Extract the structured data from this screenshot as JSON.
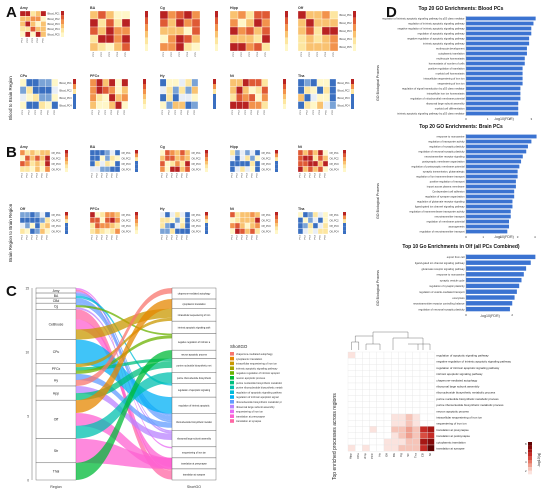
{
  "panels": {
    "a": "A",
    "b": "B",
    "c": "C",
    "d": "D"
  },
  "panel_a": {
    "ylabel": "Blood to Brain Region",
    "row1_titles": [
      "Amy",
      "BA",
      "Cg",
      "Hipp",
      "Off"
    ],
    "row2_titles": [
      "CPu",
      "PFCx",
      "Hy",
      "Nt",
      "Tha"
    ],
    "row1_sub": [
      "Blood_PC1 to Amy_PC1, 2 Correlation",
      "Blood PC1 to Brain_PC1 Correlation",
      "Blood to Cg Brain_PC1 Correlation",
      "Blood to Hipp_PC1 Correlation",
      "Blood to Off_PC1 Correlation"
    ],
    "row_labels": [
      "Blood_PC1",
      "Blood_PC2",
      "Blood_PC3",
      "Blood_PC4",
      "Blood_PC5"
    ]
  },
  "panel_b": {
    "ylabel": "Brain Region to Brain Region",
    "row1_titles": [
      "Amy",
      "BA",
      "Cg",
      "Hipp",
      "Nt"
    ],
    "row2_titles": [
      "Off",
      "PFCx",
      "Hy",
      "Nt",
      "Tha"
    ],
    "row_labels": [
      "Off_PC1",
      "Off_PC2",
      "Off_PC3",
      "Off_PC4"
    ]
  },
  "panel_c": {
    "regions": [
      "Amy",
      "BA",
      "CBd",
      "Cg",
      "CeBlouse",
      "CPu",
      "PFCx",
      "Hy",
      "Hpp",
      "Off",
      "Str",
      "Thal"
    ],
    "y_ticks": [
      "15",
      "10",
      "5",
      "0"
    ],
    "xlabel_left": "Region",
    "xlabel_right": "ShortGO",
    "terms": [
      "chaperone-mediated autophagy",
      "cytoplasmic translation",
      "intracellular sequestering of iron ion",
      "intrinsic apoptotic signaling pathway",
      "negative regulation of intrinsic apoptotic signaling pathway",
      "neuron apoptotic process",
      "purine nucleotide biosynthetic metabolic process",
      "purine ribonucleotide biosynthetic metabolic process",
      "regulation of apoptotic signaling pathway",
      "regulation of intrinsic apoptotic signaling pathway",
      "ribonucleoside biosynthetic metabolic process",
      "ribosomal large subunit assembly",
      "sequestering of iron ion",
      "translation at presynapse",
      "translation at synapse"
    ],
    "legend_title": "ShortGO",
    "legend": [
      "chaperone-mediated autophagy",
      "cytoplasmic translation",
      "intracellular sequestering of iron ion",
      "intrinsic apoptotic signaling pathway",
      "negative regulation of intrinsic apoptotic signaling pathway",
      "neuron apoptotic process",
      "purine nucleotide biosynthetic metabolic process",
      "purine ribonucleotide biosynthetic metabolic process",
      "regulation of apoptotic signaling pathway",
      "regulation of intrinsic apoptotic signaling pathway",
      "ribonucleoside biosynthetic metabolic process",
      "ribosomal large subunit assembly",
      "sequestering of iron ion",
      "translation at presynapse",
      "translation at synapse"
    ],
    "colors": [
      "#f8766d",
      "#e58700",
      "#c99800",
      "#a3a500",
      "#6bb100",
      "#00ba38",
      "#00bf7d",
      "#00c0af",
      "#00bcd8",
      "#00b0f6",
      "#619cff",
      "#b983ff",
      "#e76bf3",
      "#fd61d1",
      "#ff67a4"
    ]
  },
  "panel_d": {
    "chart1": {
      "title": "Top 20 GO Enrichments: Blood PCs",
      "ylabel": "GO Biological Process",
      "xlabel": "-log10(FDR)",
      "x_ticks": [
        "0",
        "1",
        "2",
        "3"
      ],
      "terms": [
        "regulation of intrinsic apoptotic signaling pathway by p53 class mediator",
        "regulation of intrinsic apoptotic signaling pathway",
        "negative regulation of intrinsic apoptotic signaling pathway",
        "regulation of apoptotic signaling pathway",
        "negative regulation of apoptotic signaling pathway",
        "intrinsic apoptotic signaling pathway",
        "erythrocyte development",
        "cytoplasmic translation",
        "erythrocyte homeostasis",
        "homeostasis of number of cells",
        "positive regulation of translation",
        "myeloid cell homeostasis",
        "intracellular sequestering of iron ion",
        "sequestering of iron ion",
        "regulation of signal transduction by p53 class mediator",
        "intracellular iron ion homeostasis",
        "regulation of mitochondrial membrane potential",
        "ribosomal large subunit assembly",
        "myeloid cell differentiation",
        "intrinsic apoptotic signaling pathway by p53 class mediator"
      ],
      "values": [
        3.2,
        3.1,
        3.0,
        3.0,
        2.9,
        2.9,
        2.8,
        2.8,
        2.7,
        2.7,
        2.6,
        2.6,
        2.6,
        2.6,
        2.5,
        2.5,
        2.5,
        2.4,
        2.4,
        2.4
      ]
    },
    "chart2": {
      "title": "Top 20 GO Enrichments: Brain PCs",
      "ylabel": "GO Biological Process",
      "xlabel": "-log10(FDR)",
      "x_ticks": [
        "0",
        "1",
        "2",
        "3",
        "4"
      ],
      "terms": [
        "response to monoamine",
        "regulation of transporter activity",
        "regulation of synaptic plasticity",
        "regulation of neuronal synaptic plasticity",
        "neurotransmitter receptor signaling",
        "postsynaptic membrane organization",
        "regulation of postsynaptic membrane potential",
        "synaptic transmission, glutamatergic",
        "regulation of ion transmembrane transport",
        "positive regulation of transport",
        "import across plasma membrane",
        "Ca-dependent cell adhesion",
        "regulation of synapse organization",
        "regulation of glutamate receptor signaling",
        "ligand-gated ion channel signaling pathway",
        "regulation of transmembrane transporter activity",
        "neurotransmitter transport",
        "regulation of membrane potential",
        "axonogenesis",
        "regulation of neurotransmitter transport"
      ],
      "values": [
        4.1,
        3.8,
        3.6,
        3.5,
        3.3,
        3.2,
        3.1,
        3.0,
        3.0,
        2.9,
        2.9,
        2.8,
        2.8,
        2.7,
        2.7,
        2.6,
        2.6,
        2.5,
        2.5,
        2.4
      ]
    },
    "chart3": {
      "title": "Top 10 Go Enrichments in Olf (all PCs Combined)",
      "ylabel": "GO Biological Process",
      "xlabel": "-log10(FDR)",
      "x_ticks": [
        "0",
        "2"
      ],
      "terms": [
        "export from cell",
        "ligand-gated ion channel signaling pathway",
        "glutamate receptor signaling pathway",
        "response to monoamine",
        "synaptic vesicle cycle",
        "regulation of synaptic plasticity",
        "regulation of vesicle-mediated transport",
        "exocytosis",
        "neurotransmitter receptor controlling balance",
        "regulation of neuronal synaptic plasticity"
      ],
      "values": [
        3.0,
        2.8,
        2.6,
        2.5,
        2.4,
        2.3,
        2.2,
        2.1,
        2.0,
        1.9
      ]
    },
    "heatmap": {
      "ylabel": "Top enriched processes across regions",
      "colorbar_label": "-log10(q)",
      "colorbar_ticks": [
        "8",
        "6",
        "4",
        "2"
      ],
      "rows": [
        "regulation of apoptotic signaling pathway",
        "negative regulation of intrinsic apoptotic signaling pathway",
        "regulation of intrinsic apoptotic signaling pathway",
        "intrinsic apoptotic signaling pathway",
        "chaperone-mediated autophagy",
        "ribosomal large subunit assembly",
        "ribonucleoside biosynthetic metabolic process",
        "purine nucleotide biosynthetic metabolic process",
        "purine ribonucleotide biosynthetic metabolic process",
        "neuron apoptotic process",
        "intracellular sequestering of iron ion",
        "sequestering of iron ion",
        "translation at presynapse",
        "translation at postsynapse",
        "cytoplasmic translation",
        "translation at synapse"
      ],
      "cols": [
        "Hipp",
        "CPu",
        "Amy",
        "PFC",
        "Hy",
        "Off",
        "BA",
        "Cg",
        "Str",
        "Tha",
        "CB",
        "Nt"
      ],
      "cells": [
        [
          1,
          0,
          0,
          0,
          0,
          0,
          0,
          0,
          0,
          0,
          0,
          0
        ],
        [
          0,
          0,
          0,
          0,
          0,
          0,
          0,
          0,
          0,
          0,
          0,
          0
        ],
        [
          0,
          0,
          0,
          0,
          0,
          0,
          0,
          0,
          0,
          0,
          0,
          0
        ],
        [
          0,
          0,
          0,
          0,
          0,
          0,
          0,
          0,
          0,
          0,
          0,
          0
        ],
        [
          0,
          0,
          0,
          0,
          0,
          0,
          0,
          0,
          0,
          0,
          0,
          0
        ],
        [
          0,
          0,
          0,
          0,
          0,
          0,
          0,
          0,
          0,
          0,
          0,
          0
        ],
        [
          0,
          0,
          0,
          0,
          0,
          0,
          0,
          0,
          0,
          0,
          0,
          0
        ],
        [
          0,
          0,
          0,
          0,
          0,
          0,
          0,
          0,
          0,
          0,
          0,
          0
        ],
        [
          0,
          0,
          0,
          0,
          0,
          0,
          0,
          0,
          0,
          0,
          0,
          0
        ],
        [
          0,
          0,
          0,
          0,
          0,
          0,
          0,
          0,
          0,
          0,
          0,
          0
        ],
        [
          0,
          0,
          0,
          0,
          0,
          0,
          1,
          1,
          2,
          1,
          0,
          0
        ],
        [
          0,
          0,
          0,
          0,
          0,
          0,
          1,
          1,
          2,
          1,
          0,
          0
        ],
        [
          0,
          0,
          0,
          1,
          0,
          0,
          2,
          2,
          3,
          2,
          6,
          7
        ],
        [
          0,
          0,
          0,
          0,
          0,
          0,
          1,
          2,
          3,
          2,
          5,
          6
        ],
        [
          0,
          0,
          0,
          0,
          0,
          1,
          1,
          1,
          2,
          2,
          7,
          8
        ],
        [
          1,
          0,
          1,
          0,
          0,
          1,
          1,
          2,
          2,
          2,
          6,
          9
        ]
      ]
    }
  },
  "chart_data": [
    {
      "type": "bar",
      "title": "Top 20 GO Enrichments: Blood PCs",
      "xlabel": "-log10(FDR)",
      "ylabel": "GO Biological Process",
      "categories": [
        "regulation of intrinsic apoptotic signaling pathway by p53 class mediator",
        "regulation of intrinsic apoptotic signaling pathway",
        "negative regulation of intrinsic apoptotic signaling pathway",
        "regulation of apoptotic signaling pathway",
        "negative regulation of apoptotic signaling pathway",
        "intrinsic apoptotic signaling pathway",
        "erythrocyte development",
        "cytoplasmic translation",
        "erythrocyte homeostasis",
        "homeostasis of number of cells",
        "positive regulation of translation",
        "myeloid cell homeostasis",
        "intracellular sequestering of iron ion",
        "sequestering of iron ion",
        "regulation of signal transduction by p53 class mediator",
        "intracellular iron ion homeostasis",
        "regulation of mitochondrial membrane potential",
        "ribosomal large subunit assembly",
        "myeloid cell differentiation",
        "intrinsic apoptotic signaling pathway by p53 class mediator"
      ],
      "values": [
        3.2,
        3.1,
        3.0,
        3.0,
        2.9,
        2.9,
        2.8,
        2.8,
        2.7,
        2.7,
        2.6,
        2.6,
        2.6,
        2.6,
        2.5,
        2.5,
        2.5,
        2.4,
        2.4,
        2.4
      ],
      "xlim": [
        0,
        3.4
      ]
    },
    {
      "type": "bar",
      "title": "Top 20 GO Enrichments: Brain PCs",
      "xlabel": "-log10(FDR)",
      "ylabel": "GO Biological Process",
      "values": [
        4.1,
        3.8,
        3.6,
        3.5,
        3.3,
        3.2,
        3.1,
        3.0,
        3.0,
        2.9,
        2.9,
        2.8,
        2.8,
        2.7,
        2.7,
        2.6,
        2.6,
        2.5,
        2.5,
        2.4
      ],
      "xlim": [
        0,
        4.3
      ]
    },
    {
      "type": "bar",
      "title": "Top 10 Go Enrichments in Olf (all PCs Combined)",
      "xlabel": "-log10(FDR)",
      "ylabel": "GO Biological Process",
      "values": [
        3.0,
        2.8,
        2.6,
        2.5,
        2.4,
        2.3,
        2.2,
        2.1,
        2.0,
        1.9
      ],
      "xlim": [
        0,
        3.2
      ]
    },
    {
      "type": "heatmap",
      "ylabel": "Top enriched processes across regions",
      "colorbar": "-log10(q)"
    }
  ]
}
